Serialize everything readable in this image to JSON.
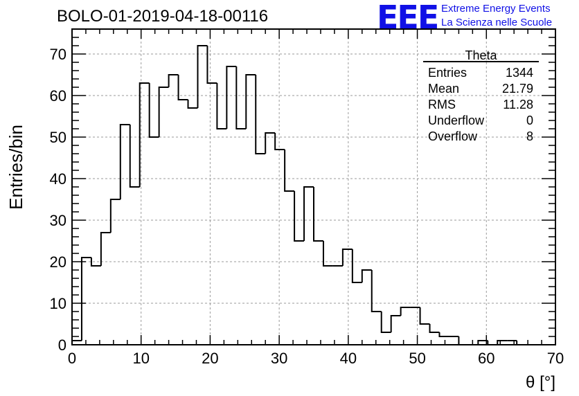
{
  "chart_data": {
    "type": "histogram",
    "title": "BOLO-01-2019-04-18-00116",
    "xlabel": "θ [°]",
    "ylabel": "Entries/bin",
    "xlim": [
      0,
      70
    ],
    "ylim": [
      0,
      76
    ],
    "xticks": [
      0,
      10,
      20,
      30,
      40,
      50,
      60,
      70
    ],
    "yticks": [
      0,
      10,
      20,
      30,
      40,
      50,
      60,
      70
    ],
    "grid": true,
    "bin_width": 1.4,
    "bin_edges_start": 0,
    "values": [
      1,
      21,
      19,
      27,
      35,
      53,
      38,
      63,
      50,
      62,
      65,
      59,
      57,
      72,
      63,
      52,
      67,
      52,
      65,
      46,
      51,
      47,
      37,
      25,
      38,
      25,
      19,
      19,
      23,
      15,
      18,
      8,
      3,
      7,
      9,
      9,
      5,
      3,
      2,
      2,
      0,
      0,
      1,
      0,
      1,
      1,
      0,
      0,
      0,
      0
    ]
  },
  "stats_box": {
    "name": "Theta",
    "rows": [
      {
        "label": "Entries",
        "value": "1344"
      },
      {
        "label": "Mean",
        "value": "21.79"
      },
      {
        "label": "RMS",
        "value": "11.28"
      },
      {
        "label": "Underflow",
        "value": "0"
      },
      {
        "label": "Overflow",
        "value": "8"
      }
    ]
  },
  "logo": {
    "mark": "EEE",
    "line1": "Extreme Energy Events",
    "line2": "La Scienza nelle Scuole",
    "color": "#1010e6"
  }
}
